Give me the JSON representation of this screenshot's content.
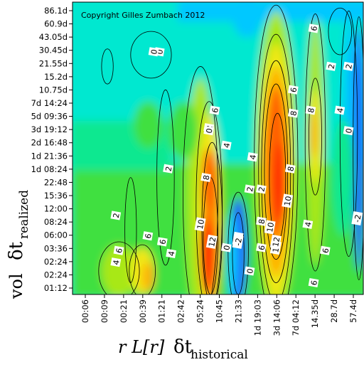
{
  "chart_data": {
    "type": "heatmap",
    "title": "",
    "copyright": "Copyright Gilles Zumbach 2012",
    "xlabel": {
      "prefix": "r L[r]",
      "symbol": "δt",
      "subscript": "historical"
    },
    "ylabel": {
      "prefix": "vol",
      "symbol": "δt",
      "subscript": "realized"
    },
    "x_ticks": [
      "00:06",
      "00:09",
      "00:21",
      "00:39",
      "01:21",
      "02:42",
      "05:24",
      "10:45",
      "21:33",
      "1d 19:03",
      "3d 14:06",
      "7d 04:12",
      "14.35d",
      "28.7d",
      "57.4d"
    ],
    "y_ticks": [
      "86.1d",
      "60.9d",
      "43.05d",
      "30.45d",
      "21.55d",
      "15.2d",
      "10.75d",
      "7d 14:24",
      "5d 09:36",
      "3d 19:12",
      "2d 16:48",
      "1d 21:36",
      "1d 08:24",
      "22:48",
      "15:36",
      "12:00",
      "08:24",
      "06:00",
      "03:36",
      "02:24",
      "02:24",
      "01:12"
    ],
    "color_scale": [
      "#1c4cff",
      "#00c8ff",
      "#00e8d0",
      "#10e890",
      "#40e040",
      "#a8e818",
      "#f0e818",
      "#ffb000",
      "#ff6000",
      "#ff2000"
    ],
    "contour_labels": [
      "0",
      "0",
      "2",
      "2",
      "2",
      "4",
      "4",
      "6",
      "6",
      "6",
      "8",
      "8",
      "10",
      "12",
      "-2",
      "2",
      "4",
      "6",
      "8",
      "10",
      "12",
      "-2",
      "0",
      "0",
      "2",
      "4",
      "6",
      "8",
      "10",
      "12",
      "6",
      "8",
      "4",
      "0",
      "2",
      "6",
      "6",
      "4",
      "0",
      "-2",
      "2",
      "4",
      "6"
    ]
  }
}
